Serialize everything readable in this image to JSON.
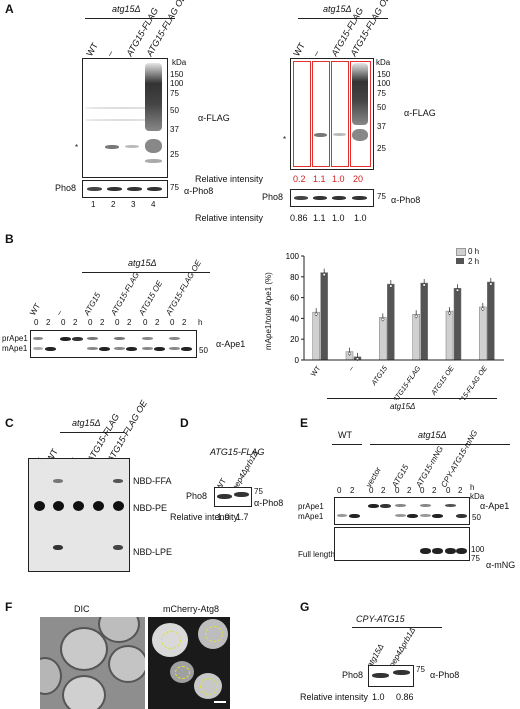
{
  "panels": {
    "A": {
      "label": "A",
      "group": "atg15Δ",
      "lanes_left": [
        "WT",
        "–",
        "ATG15-FLAG",
        "ATG15-FLAG OE"
      ],
      "lanes_right": [
        "WT",
        "–",
        "ATG15-FLAG",
        "ATG15-FLAG OE"
      ],
      "kda": "kDa",
      "markers": [
        "150",
        "100",
        "75",
        "50",
        "37",
        "25"
      ],
      "antibody_top": "α-FLAG",
      "antibody_bottom": "α-Pho8",
      "pho8_label": "Pho8",
      "pho8_marker": "75",
      "asterisk": "*",
      "lane_numbers": [
        "1",
        "2",
        "3",
        "4"
      ],
      "relative_intensity_label": "Relative intensity",
      "flag_intensity": [
        "0.2",
        "1.1",
        "1.0",
        "20"
      ],
      "pho8_intensity": [
        "0.86",
        "1.1",
        "1.0",
        "1.0"
      ]
    },
    "B": {
      "label": "B",
      "group": "atg15Δ",
      "lanes": [
        "WT",
        "–",
        "ATG15",
        "ATG15-FLAG",
        "ATG15 OE",
        "ATG15-FLAG OE"
      ],
      "timepoints": [
        "0",
        "2",
        "0",
        "2",
        "0",
        "2",
        "0",
        "2",
        "0",
        "2",
        "0",
        "2"
      ],
      "h": "h",
      "bands": [
        "prApe1",
        "mApe1"
      ],
      "marker": "50",
      "antibody": "α-Ape1",
      "legend": [
        "0 h",
        "2 h"
      ]
    },
    "C": {
      "label": "C",
      "group": "atg15Δ",
      "lanes": [
        "–",
        "WT",
        "–",
        "ATG15-FLAG",
        "ATG15-FLAG OE"
      ],
      "spots": [
        "NBD-FFA",
        "NBD-PE",
        "NBD-LPE"
      ]
    },
    "D": {
      "label": "D",
      "title": "ATG15-FLAG",
      "lanes": [
        "WT",
        "pep4Δprb1Δ"
      ],
      "protein": "Pho8",
      "marker": "75",
      "antibody": "α-Pho8",
      "relative_intensity_label": "Relative intensity",
      "intensity": [
        "1.0",
        "1.7"
      ]
    },
    "E": {
      "label": "E",
      "wt": "WT",
      "group": "atg15Δ",
      "lanes": [
        "vector",
        "ATG15",
        "ATG15-mNG",
        "CPY-ATG15-mNG"
      ],
      "timepoints": [
        "0",
        "2",
        "0",
        "2",
        "0",
        "2",
        "0",
        "2",
        "0",
        "2"
      ],
      "h": "h",
      "kda": "kDa",
      "bands": [
        "prApe1",
        "mApe1"
      ],
      "marker_ape": "50",
      "antibody_ape": "α-Ape1",
      "full_length": "Full length",
      "markers_mng": [
        "100",
        "75"
      ],
      "antibody_mng": "α-mNG"
    },
    "F": {
      "label": "F",
      "titles": [
        "DIC",
        "mCherry-Atg8"
      ]
    },
    "G": {
      "label": "G",
      "title": "CPY-ATG15",
      "lanes": [
        "atg15Δ",
        "pep4Δprb1Δ"
      ],
      "protein": "Pho8",
      "marker": "75",
      "antibody": "α-Pho8",
      "relative_intensity_label": "Relative intensity",
      "intensity": [
        "1.0",
        "0.86"
      ]
    }
  },
  "chart_data": {
    "type": "bar",
    "ylabel": "mApe1/total Ape1 (%)",
    "ylim": [
      0,
      100
    ],
    "yticks": [
      "0",
      "20",
      "40",
      "60",
      "80",
      "100"
    ],
    "categories": [
      "WT",
      "–",
      "ATG15",
      "ATG15-FLAG",
      "ATG15 OE",
      "ATG15-FLAG OE"
    ],
    "group_label": "atg15Δ",
    "series": [
      {
        "name": "0 h",
        "values": [
          46,
          8,
          41,
          44,
          47,
          51
        ],
        "color": "#d0d0d0"
      },
      {
        "name": "2 h",
        "values": [
          84,
          3,
          73,
          74,
          69,
          75
        ],
        "color": "#555555"
      }
    ]
  }
}
